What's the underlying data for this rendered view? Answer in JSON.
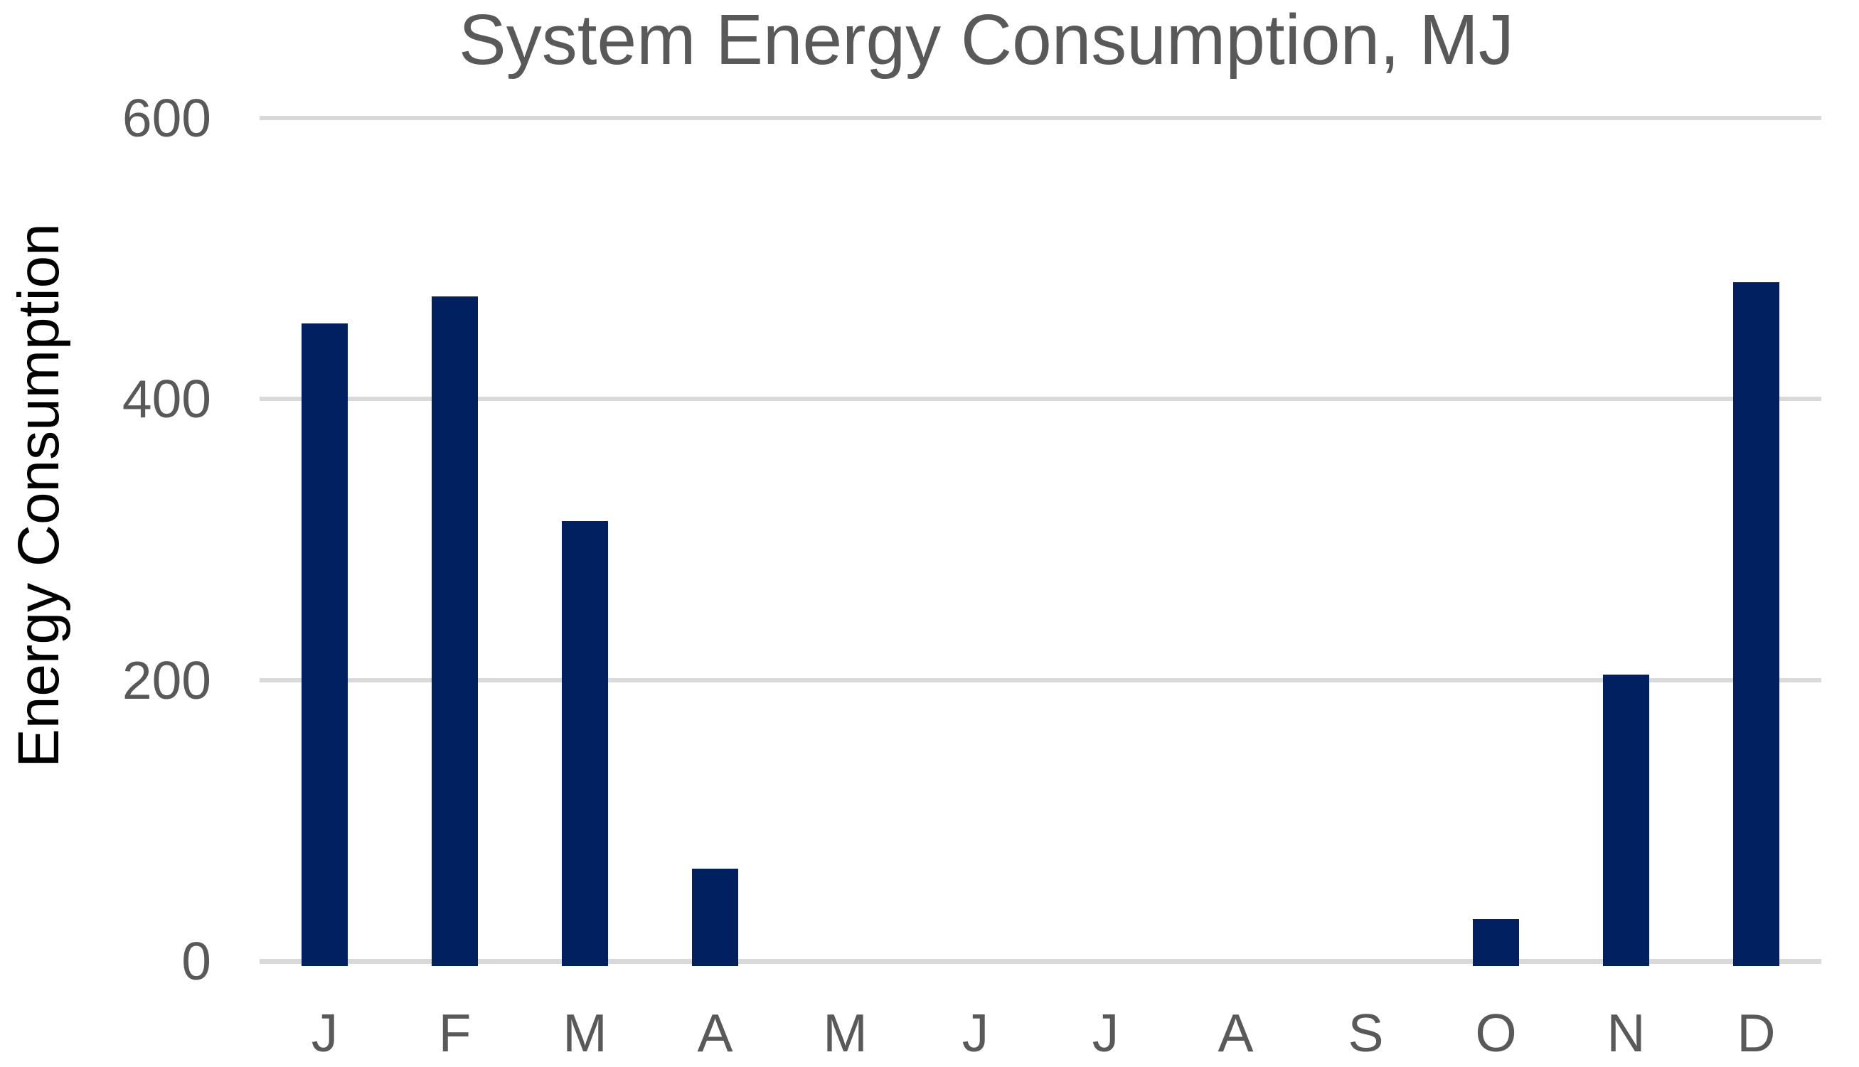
{
  "chart_data": {
    "type": "bar",
    "title": "System Energy Consumption, MJ",
    "ylabel": "Energy Consumption",
    "xlabel": "",
    "categories": [
      "J",
      "F",
      "M",
      "A",
      "M",
      "J",
      "J",
      "A",
      "S",
      "O",
      "N",
      "D"
    ],
    "values": [
      454,
      473,
      313,
      66,
      0,
      0,
      0,
      0,
      0,
      30,
      204,
      483
    ],
    "yticks": [
      0,
      200,
      400,
      600
    ],
    "ylim": [
      0,
      600
    ],
    "grid": true,
    "legend": false,
    "colors": {
      "bar": "#002060",
      "gridline": "#d9d9d9",
      "axis_line": "#d9d9d9",
      "title": "#595959",
      "tick_label": "#595959",
      "axis_title": "#000000",
      "background": "#ffffff"
    }
  }
}
